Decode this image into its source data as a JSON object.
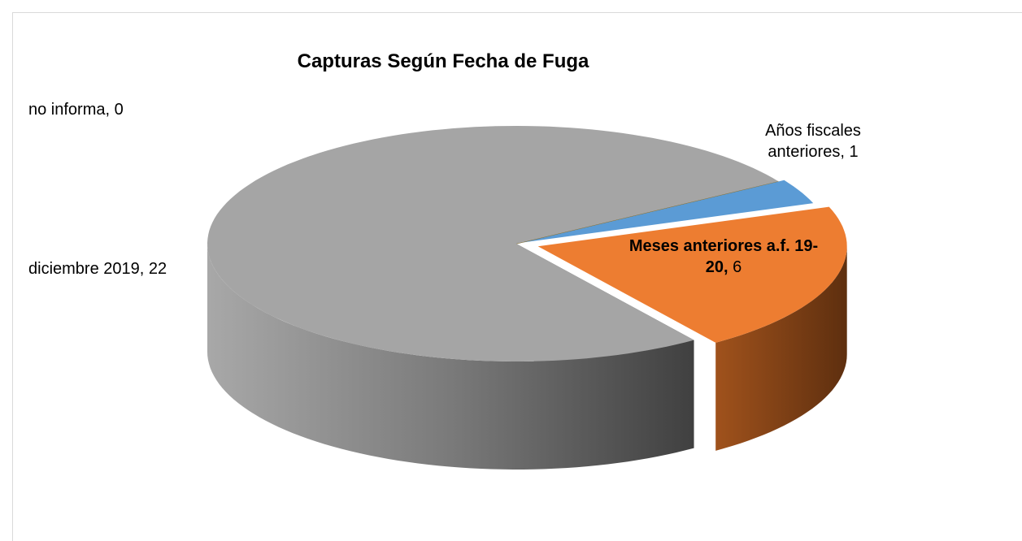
{
  "chart_data": {
    "type": "pie3d",
    "title": "Capturas Según Fecha de Fuga",
    "categories": [
      "no informa",
      "Años fiscales anteriores",
      "Meses anteriores a.f. 19-20",
      "diciembre 2019"
    ],
    "values": [
      0,
      1,
      6,
      22
    ],
    "colors": [
      "#ffc000",
      "#5b9bd5",
      "#ed7d31",
      "#a5a5a5"
    ]
  }
}
